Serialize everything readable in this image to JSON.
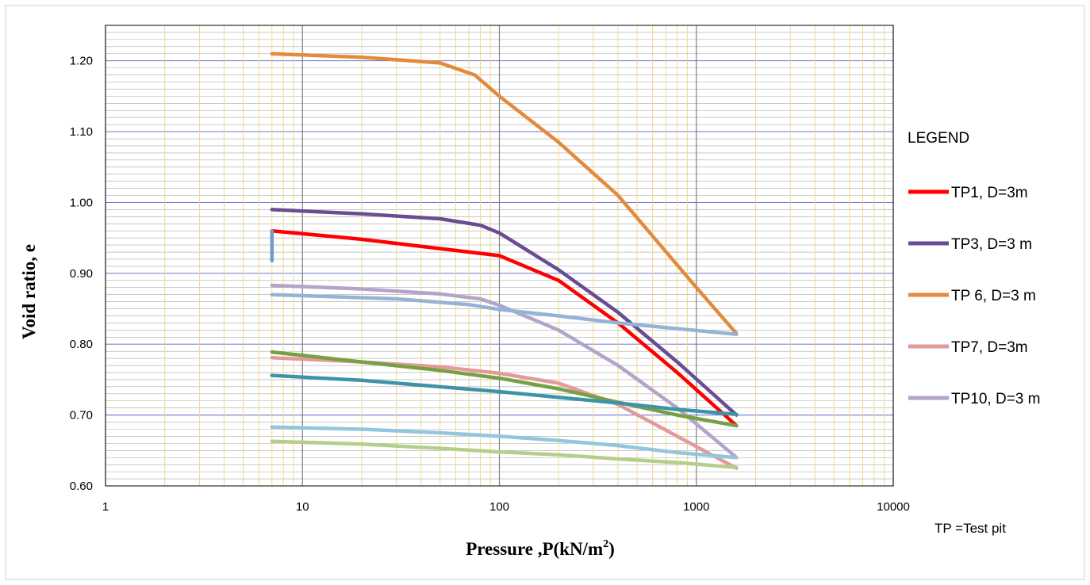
{
  "chart_data": {
    "type": "line",
    "xlabel": "Pressure ,P(kN/m",
    "xlabel_sup": "2",
    "xlabel_end": ")",
    "ylabel": "Void ratio, e",
    "xscale": "log",
    "xlim": [
      1,
      10000
    ],
    "ylim": [
      0.6,
      1.25
    ],
    "x_ticks": [
      1,
      10,
      100,
      1000,
      10000
    ],
    "x_tick_labels": [
      "1",
      "10",
      "100",
      "1000",
      "10000"
    ],
    "y_ticks": [
      0.6,
      0.7,
      0.8,
      0.9,
      1.0,
      1.1,
      1.2
    ],
    "y_tick_labels": [
      "0.60",
      "0.70",
      "0.80",
      "0.90",
      "1.00",
      "1.10",
      "1.20"
    ],
    "grid": true,
    "legend_title": "LEGEND",
    "legend_position": "right",
    "note": "TP =Test pit",
    "series": [
      {
        "name": "TP1, D=3m",
        "color": "#ff0000",
        "in_legend": true,
        "points": [
          [
            7,
            0.96
          ],
          [
            20,
            0.948
          ],
          [
            50,
            0.935
          ],
          [
            100,
            0.925
          ],
          [
            200,
            0.89
          ],
          [
            400,
            0.83
          ],
          [
            800,
            0.76
          ],
          [
            1600,
            0.685
          ]
        ]
      },
      {
        "name": "TP3, D=3 m",
        "color": "#6a4c93",
        "in_legend": true,
        "points": [
          [
            7,
            0.99
          ],
          [
            20,
            0.984
          ],
          [
            50,
            0.977
          ],
          [
            80,
            0.968
          ],
          [
            100,
            0.957
          ],
          [
            200,
            0.905
          ],
          [
            400,
            0.845
          ],
          [
            800,
            0.775
          ],
          [
            1600,
            0.7
          ]
        ]
      },
      {
        "name": "TP 6, D=3 m",
        "color": "#e48a3c",
        "in_legend": true,
        "points": [
          [
            7,
            1.21
          ],
          [
            20,
            1.205
          ],
          [
            50,
            1.197
          ],
          [
            75,
            1.18
          ],
          [
            100,
            1.15
          ],
          [
            200,
            1.085
          ],
          [
            400,
            1.01
          ],
          [
            1000,
            0.88
          ],
          [
            1600,
            0.815
          ]
        ]
      },
      {
        "name": "TP7, D=3m",
        "color": "#e29a9a",
        "in_legend": true,
        "points": [
          [
            7,
            0.781
          ],
          [
            20,
            0.775
          ],
          [
            50,
            0.768
          ],
          [
            100,
            0.759
          ],
          [
            200,
            0.745
          ],
          [
            400,
            0.715
          ],
          [
            800,
            0.67
          ],
          [
            1600,
            0.625
          ]
        ]
      },
      {
        "name": "TP10, D=3 m",
        "color": "#b3a4c9",
        "in_legend": true,
        "points": [
          [
            7,
            0.883
          ],
          [
            20,
            0.878
          ],
          [
            50,
            0.871
          ],
          [
            80,
            0.864
          ],
          [
            100,
            0.855
          ],
          [
            200,
            0.82
          ],
          [
            400,
            0.77
          ],
          [
            800,
            0.71
          ],
          [
            1600,
            0.64
          ]
        ]
      },
      {
        "color": "#6f9bc4",
        "in_legend": false,
        "points": [
          [
            7,
            0.918
          ],
          [
            7,
            0.96
          ]
        ]
      },
      {
        "color": "#95b3d7",
        "in_legend": false,
        "points": [
          [
            7,
            0.87
          ],
          [
            30,
            0.864
          ],
          [
            70,
            0.856
          ],
          [
            100,
            0.849
          ],
          [
            200,
            0.84
          ],
          [
            400,
            0.83
          ],
          [
            800,
            0.822
          ],
          [
            1600,
            0.814
          ]
        ]
      },
      {
        "color": "#77a043",
        "in_legend": false,
        "points": [
          [
            7,
            0.789
          ],
          [
            20,
            0.775
          ],
          [
            50,
            0.763
          ],
          [
            100,
            0.752
          ],
          [
            200,
            0.737
          ],
          [
            400,
            0.718
          ],
          [
            800,
            0.7
          ],
          [
            1600,
            0.685
          ]
        ]
      },
      {
        "color": "#3f93a8",
        "in_legend": false,
        "points": [
          [
            7,
            0.756
          ],
          [
            20,
            0.749
          ],
          [
            50,
            0.74
          ],
          [
            100,
            0.733
          ],
          [
            200,
            0.725
          ],
          [
            400,
            0.717
          ],
          [
            800,
            0.708
          ],
          [
            1600,
            0.701
          ]
        ]
      },
      {
        "color": "#92c5de",
        "in_legend": false,
        "points": [
          [
            7,
            0.683
          ],
          [
            20,
            0.68
          ],
          [
            50,
            0.675
          ],
          [
            100,
            0.67
          ],
          [
            200,
            0.664
          ],
          [
            400,
            0.657
          ],
          [
            800,
            0.647
          ],
          [
            1600,
            0.64
          ]
        ]
      },
      {
        "color": "#b5cf8b",
        "in_legend": false,
        "points": [
          [
            7,
            0.663
          ],
          [
            20,
            0.659
          ],
          [
            50,
            0.653
          ],
          [
            100,
            0.648
          ],
          [
            200,
            0.644
          ],
          [
            400,
            0.638
          ],
          [
            800,
            0.633
          ],
          [
            1600,
            0.626
          ]
        ]
      }
    ]
  }
}
